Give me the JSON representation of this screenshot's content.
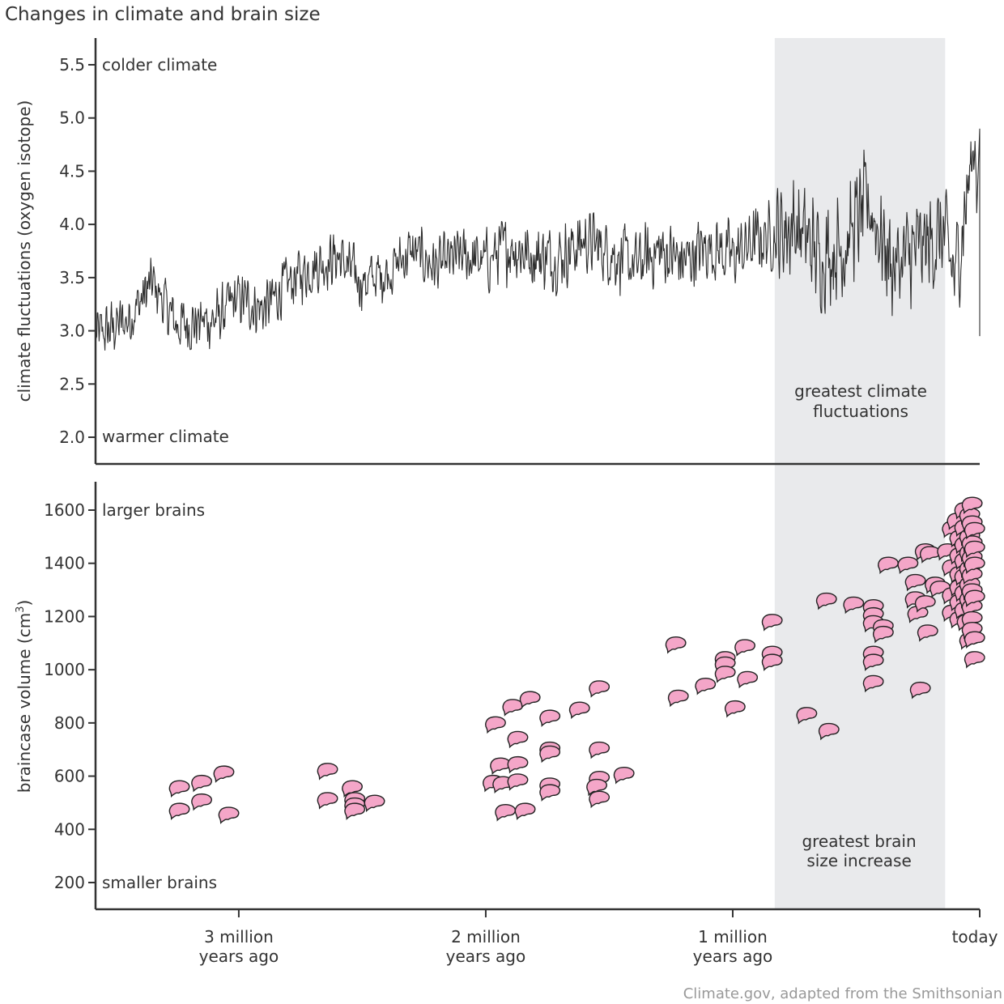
{
  "chart_data": [
    {
      "id": "climate",
      "type": "line",
      "title": "Changes in climate and brain size",
      "ylabel": "climate fluctuations (oxygen isotope)",
      "xlabel": "",
      "x_unit": "million years ago",
      "xlim": [
        3.58,
        0
      ],
      "ylim": [
        1.75,
        5.7
      ],
      "yticks": [
        2.0,
        2.5,
        3.0,
        3.5,
        4.0,
        4.5,
        5.0,
        5.5
      ],
      "ytick_labels": [
        "2.0",
        "2.5",
        "3.0",
        "3.5",
        "4.0",
        "4.5",
        "5.0",
        "5.5"
      ],
      "annotations": {
        "top": "colder climate",
        "bottom": "warmer climate",
        "band": "greatest climate fluctuations"
      },
      "band_range_mya": [
        0.83,
        0.14
      ],
      "series_description": "dense oscillating oxygen-isotope record; trend rising from ~3.0 at 3.58 Mya to ~3.9 near 1 Mya, with widest swings (2.7–5.0) in the last 0.8 Myr, ending ~4.9 then dropping to ~2.95 today",
      "series_anchor_points": [
        {
          "x": 3.58,
          "y": 2.95
        },
        {
          "x": 3.45,
          "y": 3.1
        },
        {
          "x": 3.35,
          "y": 3.45
        },
        {
          "x": 3.25,
          "y": 3.05
        },
        {
          "x": 3.1,
          "y": 3.1
        },
        {
          "x": 3.0,
          "y": 3.3
        },
        {
          "x": 2.9,
          "y": 3.2
        },
        {
          "x": 2.8,
          "y": 3.45
        },
        {
          "x": 2.7,
          "y": 3.6
        },
        {
          "x": 2.6,
          "y": 3.7
        },
        {
          "x": 2.5,
          "y": 3.45
        },
        {
          "x": 2.4,
          "y": 3.55
        },
        {
          "x": 2.3,
          "y": 3.75
        },
        {
          "x": 2.2,
          "y": 3.6
        },
        {
          "x": 2.1,
          "y": 3.7
        },
        {
          "x": 2.0,
          "y": 3.65
        },
        {
          "x": 1.9,
          "y": 3.8
        },
        {
          "x": 1.8,
          "y": 3.7
        },
        {
          "x": 1.7,
          "y": 3.7
        },
        {
          "x": 1.6,
          "y": 3.85
        },
        {
          "x": 1.5,
          "y": 3.75
        },
        {
          "x": 1.4,
          "y": 3.6
        },
        {
          "x": 1.3,
          "y": 3.75
        },
        {
          "x": 1.2,
          "y": 3.65
        },
        {
          "x": 1.1,
          "y": 3.8
        },
        {
          "x": 1.0,
          "y": 3.7
        },
        {
          "x": 0.9,
          "y": 3.85
        },
        {
          "x": 0.83,
          "y": 3.9
        },
        {
          "x": 0.75,
          "y": 4.0
        },
        {
          "x": 0.65,
          "y": 3.7
        },
        {
          "x": 0.55,
          "y": 3.8
        },
        {
          "x": 0.45,
          "y": 4.2
        },
        {
          "x": 0.35,
          "y": 3.6
        },
        {
          "x": 0.25,
          "y": 3.75
        },
        {
          "x": 0.15,
          "y": 3.9
        },
        {
          "x": 0.1,
          "y": 3.5
        },
        {
          "x": 0.05,
          "y": 4.3
        },
        {
          "x": 0.015,
          "y": 4.85
        },
        {
          "x": 0.0,
          "y": 2.95
        }
      ],
      "amplitude": [
        {
          "from": 3.58,
          "to": 2.0,
          "half_range": 0.32
        },
        {
          "from": 2.0,
          "to": 0.83,
          "half_range": 0.38
        },
        {
          "from": 0.83,
          "to": 0.0,
          "half_range": 0.6
        }
      ]
    },
    {
      "id": "brains",
      "type": "scatter",
      "ylabel": "braincase volume (cm³)",
      "xlabel": "",
      "x_unit": "million years ago",
      "xlim": [
        3.58,
        0
      ],
      "ylim": [
        100,
        1720
      ],
      "yticks": [
        200,
        400,
        600,
        800,
        1000,
        1200,
        1400,
        1600
      ],
      "ytick_labels": [
        "200",
        "400",
        "600",
        "800",
        "1000",
        "1200",
        "1400",
        "1600"
      ],
      "xticks": [
        3,
        2,
        1,
        0
      ],
      "xtick_labels": [
        [
          "3 million",
          "years ago"
        ],
        [
          "2 million",
          "years ago"
        ],
        [
          "1 million",
          "years ago"
        ],
        [
          "today"
        ]
      ],
      "annotations": {
        "top": "larger brains",
        "bottom": "smaller brains",
        "band": [
          "greatest brain",
          "size increase"
        ]
      },
      "band_range_mya": [
        0.83,
        0.14
      ],
      "marker": "brain-icon",
      "points": [
        {
          "x": 3.24,
          "y": 555
        },
        {
          "x": 3.24,
          "y": 470
        },
        {
          "x": 3.15,
          "y": 575
        },
        {
          "x": 3.15,
          "y": 505
        },
        {
          "x": 3.06,
          "y": 610
        },
        {
          "x": 3.04,
          "y": 455
        },
        {
          "x": 2.64,
          "y": 620
        },
        {
          "x": 2.64,
          "y": 510
        },
        {
          "x": 2.54,
          "y": 555
        },
        {
          "x": 2.53,
          "y": 510
        },
        {
          "x": 2.53,
          "y": 490
        },
        {
          "x": 2.53,
          "y": 470
        },
        {
          "x": 2.45,
          "y": 500
        },
        {
          "x": 1.96,
          "y": 795
        },
        {
          "x": 1.97,
          "y": 575
        },
        {
          "x": 1.93,
          "y": 570
        },
        {
          "x": 1.94,
          "y": 640
        },
        {
          "x": 1.92,
          "y": 465
        },
        {
          "x": 1.89,
          "y": 860
        },
        {
          "x": 1.87,
          "y": 645
        },
        {
          "x": 1.87,
          "y": 740
        },
        {
          "x": 1.87,
          "y": 580
        },
        {
          "x": 1.82,
          "y": 890
        },
        {
          "x": 1.84,
          "y": 470
        },
        {
          "x": 1.74,
          "y": 820
        },
        {
          "x": 1.74,
          "y": 700
        },
        {
          "x": 1.74,
          "y": 685
        },
        {
          "x": 1.74,
          "y": 565
        },
        {
          "x": 1.74,
          "y": 540
        },
        {
          "x": 1.62,
          "y": 850
        },
        {
          "x": 1.54,
          "y": 930
        },
        {
          "x": 1.54,
          "y": 700
        },
        {
          "x": 1.54,
          "y": 590
        },
        {
          "x": 1.55,
          "y": 560
        },
        {
          "x": 1.54,
          "y": 515
        },
        {
          "x": 1.44,
          "y": 605
        },
        {
          "x": 1.23,
          "y": 1095
        },
        {
          "x": 1.22,
          "y": 895
        },
        {
          "x": 1.11,
          "y": 940
        },
        {
          "x": 1.03,
          "y": 1040
        },
        {
          "x": 1.03,
          "y": 1020
        },
        {
          "x": 1.03,
          "y": 985
        },
        {
          "x": 0.99,
          "y": 855
        },
        {
          "x": 0.95,
          "y": 1085
        },
        {
          "x": 0.94,
          "y": 965
        },
        {
          "x": 0.84,
          "y": 1180
        },
        {
          "x": 0.84,
          "y": 1060
        },
        {
          "x": 0.84,
          "y": 1030
        },
        {
          "x": 0.7,
          "y": 830
        },
        {
          "x": 0.61,
          "y": 770
        },
        {
          "x": 0.62,
          "y": 1260
        },
        {
          "x": 0.51,
          "y": 1245
        },
        {
          "x": 0.43,
          "y": 1235
        },
        {
          "x": 0.43,
          "y": 1205
        },
        {
          "x": 0.43,
          "y": 1175
        },
        {
          "x": 0.43,
          "y": 1060
        },
        {
          "x": 0.43,
          "y": 1030
        },
        {
          "x": 0.43,
          "y": 950
        },
        {
          "x": 0.39,
          "y": 1160
        },
        {
          "x": 0.39,
          "y": 1135
        },
        {
          "x": 0.37,
          "y": 1395
        },
        {
          "x": 0.29,
          "y": 1395
        },
        {
          "x": 0.24,
          "y": 925
        },
        {
          "x": 0.26,
          "y": 1330
        },
        {
          "x": 0.26,
          "y": 1265
        },
        {
          "x": 0.25,
          "y": 1210
        },
        {
          "x": 0.22,
          "y": 1445
        },
        {
          "x": 0.2,
          "y": 1435
        },
        {
          "x": 0.22,
          "y": 1250
        },
        {
          "x": 0.21,
          "y": 1140
        },
        {
          "x": 0.18,
          "y": 1320
        },
        {
          "x": 0.16,
          "y": 1305
        },
        {
          "x": 0.13,
          "y": 1445
        },
        {
          "x": 0.11,
          "y": 1530
        },
        {
          "x": 0.11,
          "y": 1385
        },
        {
          "x": 0.11,
          "y": 1280
        },
        {
          "x": 0.11,
          "y": 1215
        },
        {
          "x": 0.09,
          "y": 1560
        },
        {
          "x": 0.08,
          "y": 1495
        },
        {
          "x": 0.08,
          "y": 1430
        },
        {
          "x": 0.08,
          "y": 1360
        },
        {
          "x": 0.08,
          "y": 1310
        },
        {
          "x": 0.08,
          "y": 1255
        },
        {
          "x": 0.08,
          "y": 1190
        },
        {
          "x": 0.06,
          "y": 1600
        },
        {
          "x": 0.06,
          "y": 1535
        },
        {
          "x": 0.06,
          "y": 1470
        },
        {
          "x": 0.06,
          "y": 1410
        },
        {
          "x": 0.06,
          "y": 1350
        },
        {
          "x": 0.06,
          "y": 1290
        },
        {
          "x": 0.06,
          "y": 1225
        },
        {
          "x": 0.05,
          "y": 1180
        },
        {
          "x": 0.04,
          "y": 1110
        },
        {
          "x": 0.04,
          "y": 1580
        },
        {
          "x": 0.04,
          "y": 1500
        },
        {
          "x": 0.04,
          "y": 1440
        },
        {
          "x": 0.04,
          "y": 1380
        },
        {
          "x": 0.04,
          "y": 1320
        },
        {
          "x": 0.04,
          "y": 1265
        },
        {
          "x": 0.03,
          "y": 1620
        },
        {
          "x": 0.03,
          "y": 1550
        },
        {
          "x": 0.03,
          "y": 1475
        },
        {
          "x": 0.03,
          "y": 1420
        },
        {
          "x": 0.03,
          "y": 1355
        },
        {
          "x": 0.03,
          "y": 1295
        },
        {
          "x": 0.03,
          "y": 1235
        },
        {
          "x": 0.03,
          "y": 1190
        },
        {
          "x": 0.03,
          "y": 1150
        },
        {
          "x": 0.02,
          "y": 1525
        },
        {
          "x": 0.02,
          "y": 1455
        },
        {
          "x": 0.02,
          "y": 1395
        },
        {
          "x": 0.02,
          "y": 1040
        },
        {
          "x": 0.02,
          "y": 1270
        },
        {
          "x": 0.02,
          "y": 1115
        }
      ]
    }
  ],
  "title": "Changes in climate and brain size",
  "credit": "Climate.gov, adapted from the Smithsonian",
  "colors": {
    "line": "#2e2e2e",
    "band": "#e9eaec",
    "brain_fill": "#f4a6c8",
    "brain_stroke": "#222222",
    "text": "#333333",
    "credit_text": "#999999"
  }
}
